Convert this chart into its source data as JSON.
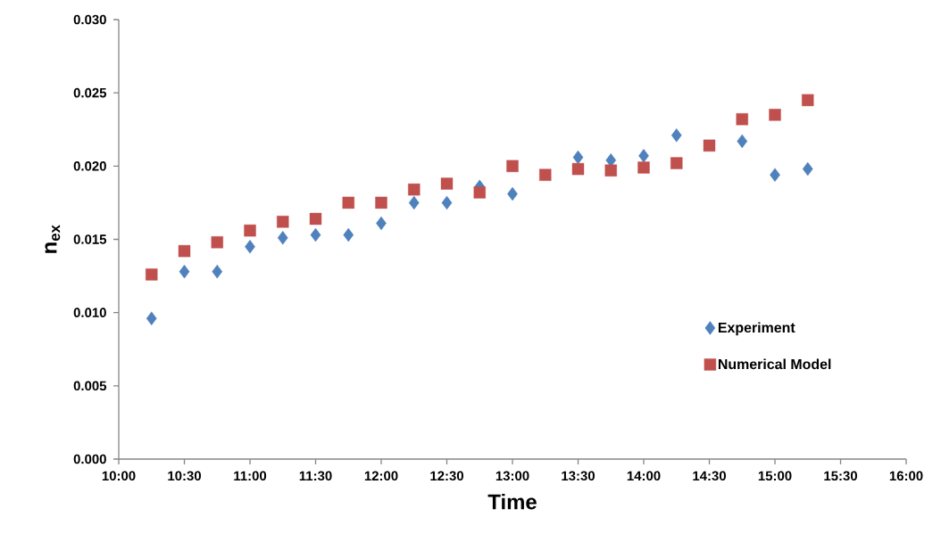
{
  "chart_data": {
    "type": "scatter",
    "xlabel": "Time",
    "ylabel": "n$_{ex}$",
    "x": [
      10.25,
      10.5,
      10.75,
      11,
      11.25,
      11.5,
      11.75,
      12,
      12.25,
      12.5,
      12.75,
      13,
      13.25,
      13.5,
      13.75,
      14,
      14.25,
      14.5,
      14.75,
      15,
      15.25
    ],
    "series": [
      {
        "name": "Experiment",
        "color": "#4f81bd",
        "marker": "diamond",
        "values": [
          0.0096,
          0.0128,
          0.0128,
          0.0145,
          0.0151,
          0.0153,
          0.0153,
          0.0161,
          0.0175,
          0.0175,
          0.0186,
          0.0181,
          null,
          0.0206,
          0.0204,
          0.0207,
          0.0221,
          null,
          0.0217,
          0.0194,
          0.0198
        ]
      },
      {
        "name": "Numerical Model",
        "color": "#c0504d",
        "marker": "square",
        "values": [
          0.0126,
          0.0142,
          0.0148,
          0.0156,
          0.0162,
          0.0164,
          0.0175,
          0.0175,
          0.0184,
          0.0188,
          0.0182,
          0.02,
          0.0194,
          0.0198,
          0.0197,
          0.0199,
          0.0202,
          0.0214,
          0.0232,
          0.0235,
          0.0245
        ]
      }
    ],
    "xlim": [
      10,
      16
    ],
    "xticks": [
      {
        "value": 10,
        "label": "10:00"
      },
      {
        "value": 10.5,
        "label": "10:30"
      },
      {
        "value": 11,
        "label": "11:00"
      },
      {
        "value": 11.5,
        "label": "11:30"
      },
      {
        "value": 12,
        "label": "12:00"
      },
      {
        "value": 12.5,
        "label": "12:30"
      },
      {
        "value": 13,
        "label": "13:00"
      },
      {
        "value": 13.5,
        "label": "13:30"
      },
      {
        "value": 14,
        "label": "14:00"
      },
      {
        "value": 14.5,
        "label": "14:30"
      },
      {
        "value": 15,
        "label": "15:00"
      },
      {
        "value": 15.5,
        "label": "15:30"
      },
      {
        "value": 16,
        "label": "16:00"
      }
    ],
    "ylim": [
      0,
      0.03
    ],
    "yticks": [
      {
        "value": 0,
        "label": "0.000"
      },
      {
        "value": 0.005,
        "label": "0.005"
      },
      {
        "value": 0.01,
        "label": "0.010"
      },
      {
        "value": 0.015,
        "label": "0.015"
      },
      {
        "value": 0.02,
        "label": "0.020"
      },
      {
        "value": 0.025,
        "label": "0.025"
      },
      {
        "value": 0.03,
        "label": "0.030"
      }
    ],
    "legend": "right",
    "grid": false
  }
}
